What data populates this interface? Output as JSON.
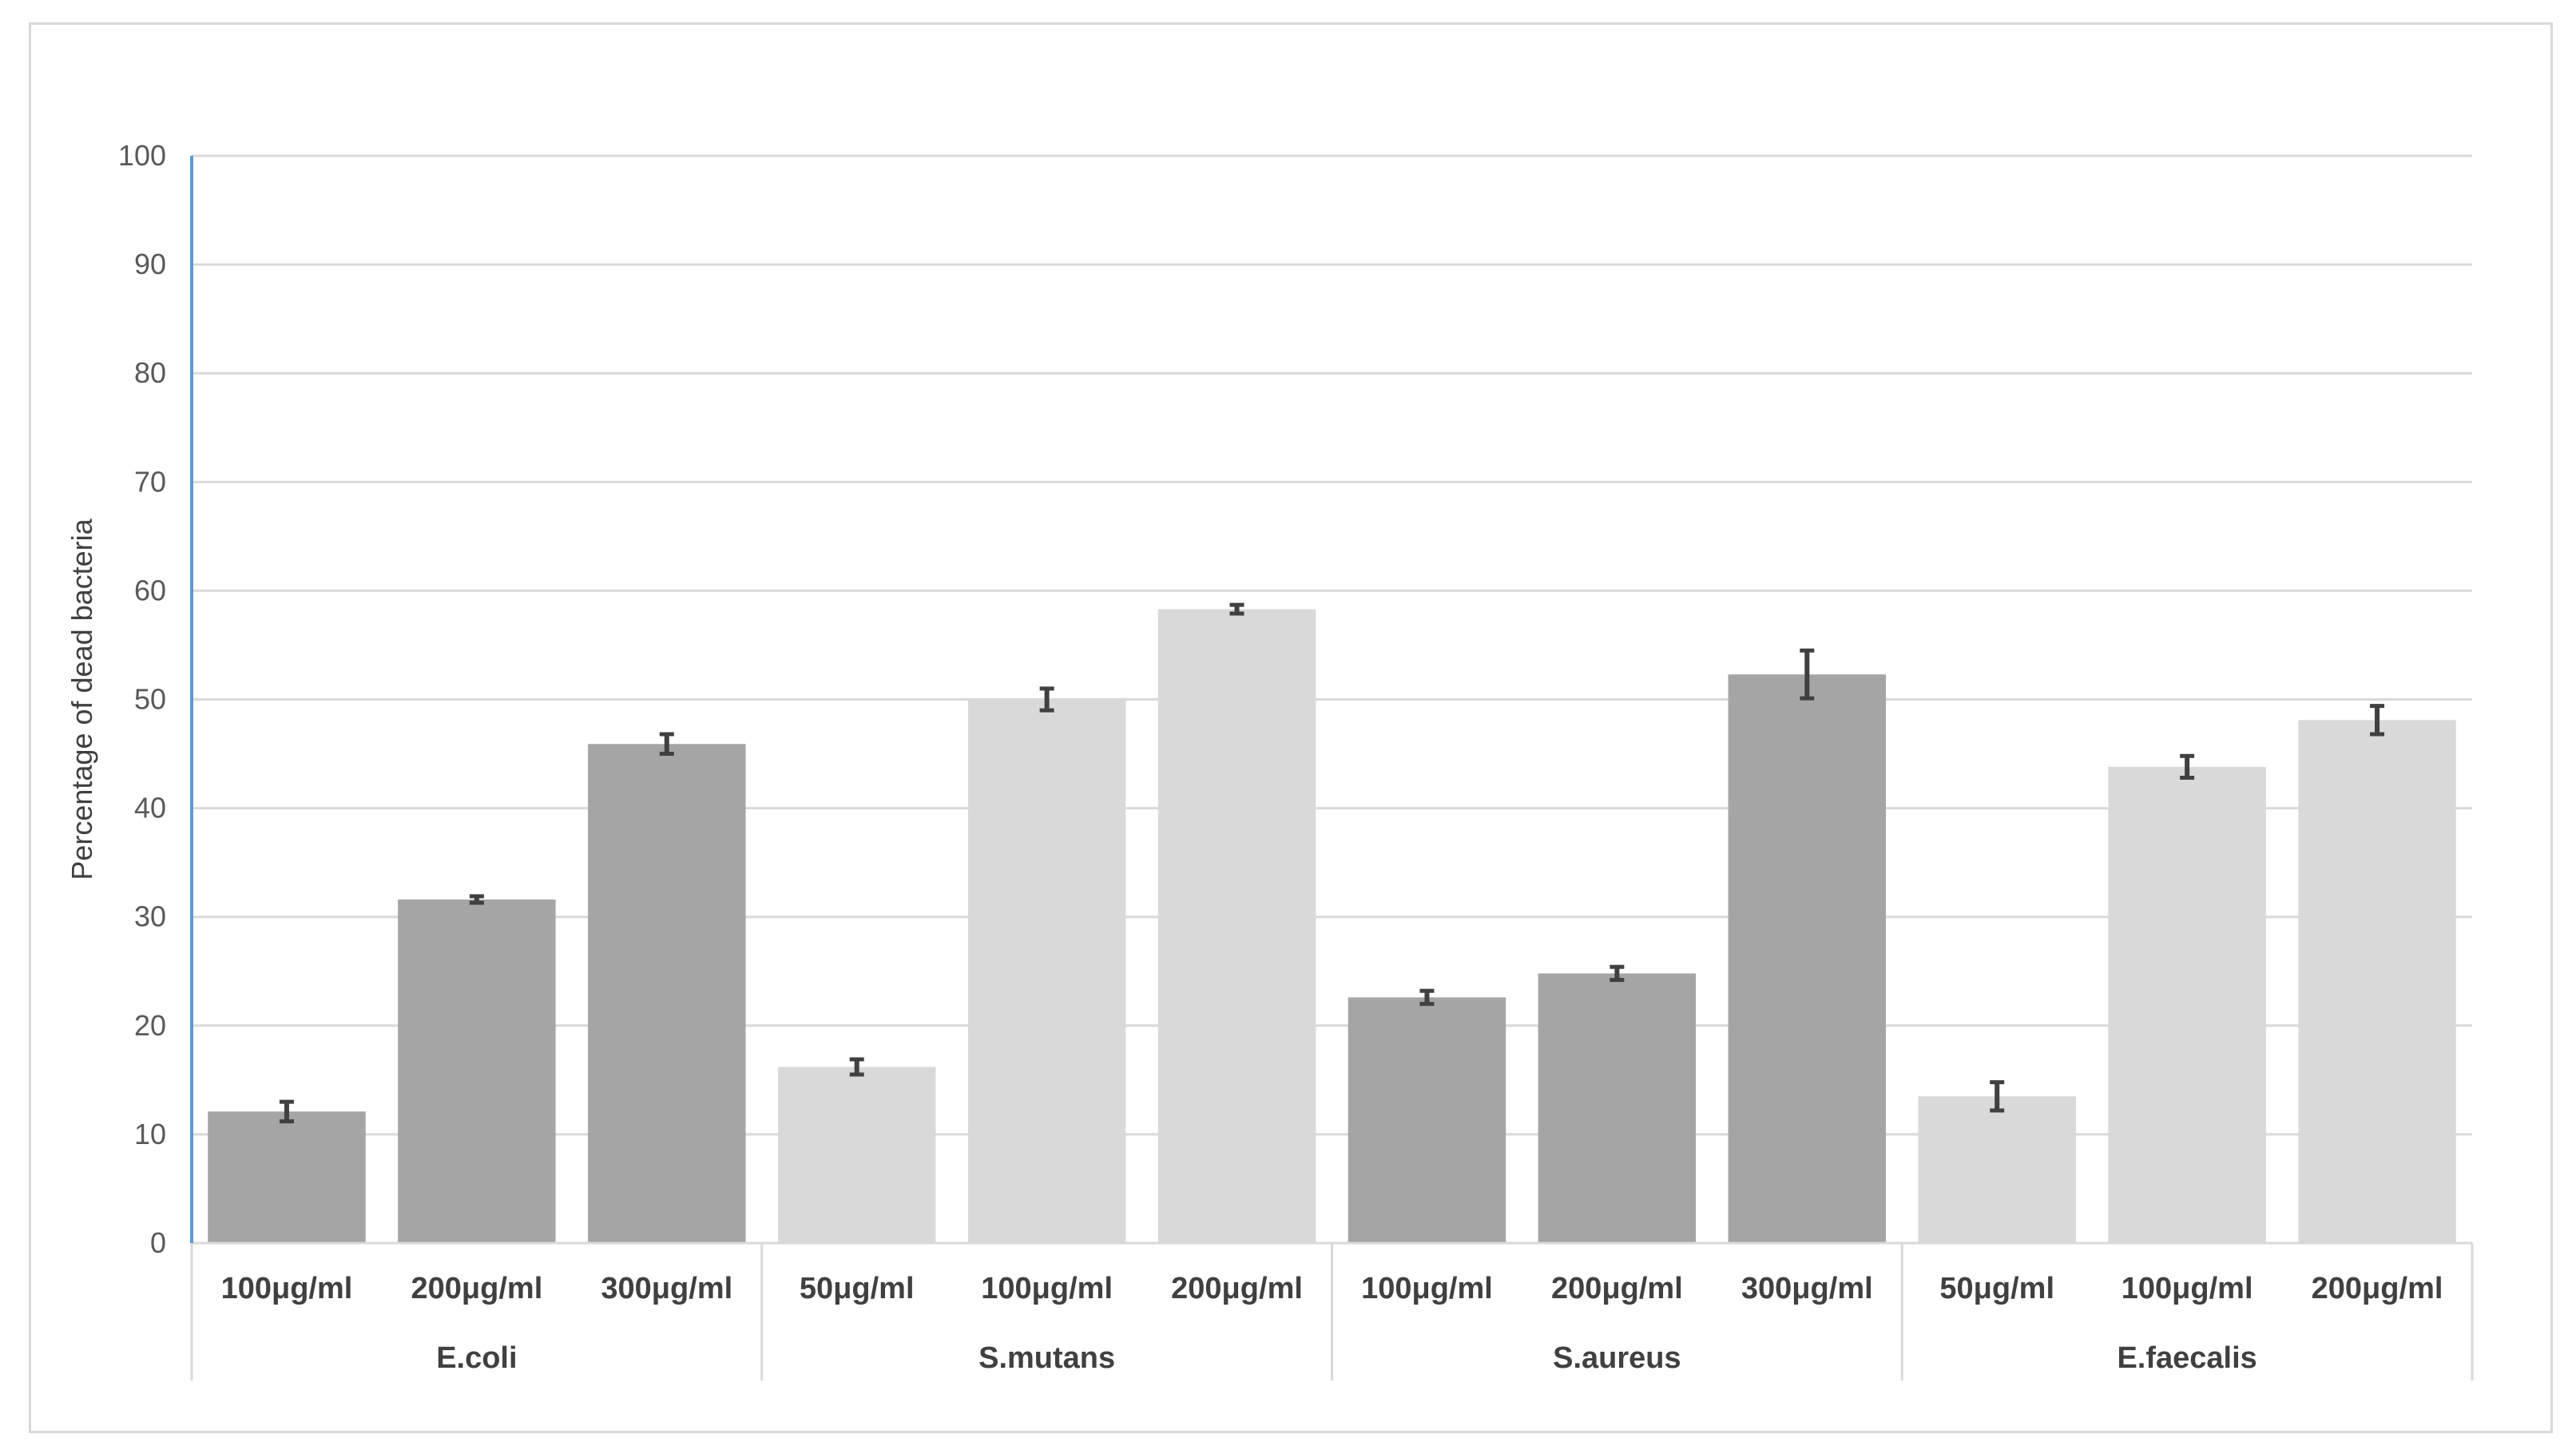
{
  "chart_data": {
    "type": "bar",
    "title": "",
    "xlabel": "",
    "ylabel": "Percentage of dead bacteria",
    "ylim": [
      0,
      100
    ],
    "yticks": [
      0,
      10,
      20,
      30,
      40,
      50,
      60,
      70,
      80,
      90,
      100
    ],
    "grid": true,
    "legend": "none",
    "colors": {
      "dark_bar": "#a5a5a5",
      "light_bar": "#d9d9d9",
      "error_bar": "#404040",
      "gridline": "#d9d9d9",
      "y_axis": "#5b9bd5"
    },
    "groups": [
      {
        "name": "E.coli",
        "shade": "dark",
        "bars": [
          {
            "label": "100μg/ml",
            "value": 12.1,
            "error": 0.9
          },
          {
            "label": "200μg/ml",
            "value": 31.6,
            "error": 0.3
          },
          {
            "label": "300μg/ml",
            "value": 45.9,
            "error": 0.9
          }
        ]
      },
      {
        "name": "S.mutans",
        "shade": "light",
        "bars": [
          {
            "label": "50μg/ml",
            "value": 16.2,
            "error": 0.7
          },
          {
            "label": "100μg/ml",
            "value": 50.0,
            "error": 1.0
          },
          {
            "label": "200μg/ml",
            "value": 58.3,
            "error": 0.4
          }
        ]
      },
      {
        "name": "S.aureus",
        "shade": "dark",
        "bars": [
          {
            "label": "100μg/ml",
            "value": 22.6,
            "error": 0.6
          },
          {
            "label": "200μg/ml",
            "value": 24.8,
            "error": 0.6
          },
          {
            "label": "300μg/ml",
            "value": 52.3,
            "error": 2.2
          }
        ]
      },
      {
        "name": "E.faecalis",
        "shade": "light",
        "bars": [
          {
            "label": "50μg/ml",
            "value": 13.5,
            "error": 1.3
          },
          {
            "label": "100μg/ml",
            "value": 43.8,
            "error": 1.0
          },
          {
            "label": "200μg/ml",
            "value": 48.1,
            "error": 1.3
          }
        ]
      }
    ]
  }
}
